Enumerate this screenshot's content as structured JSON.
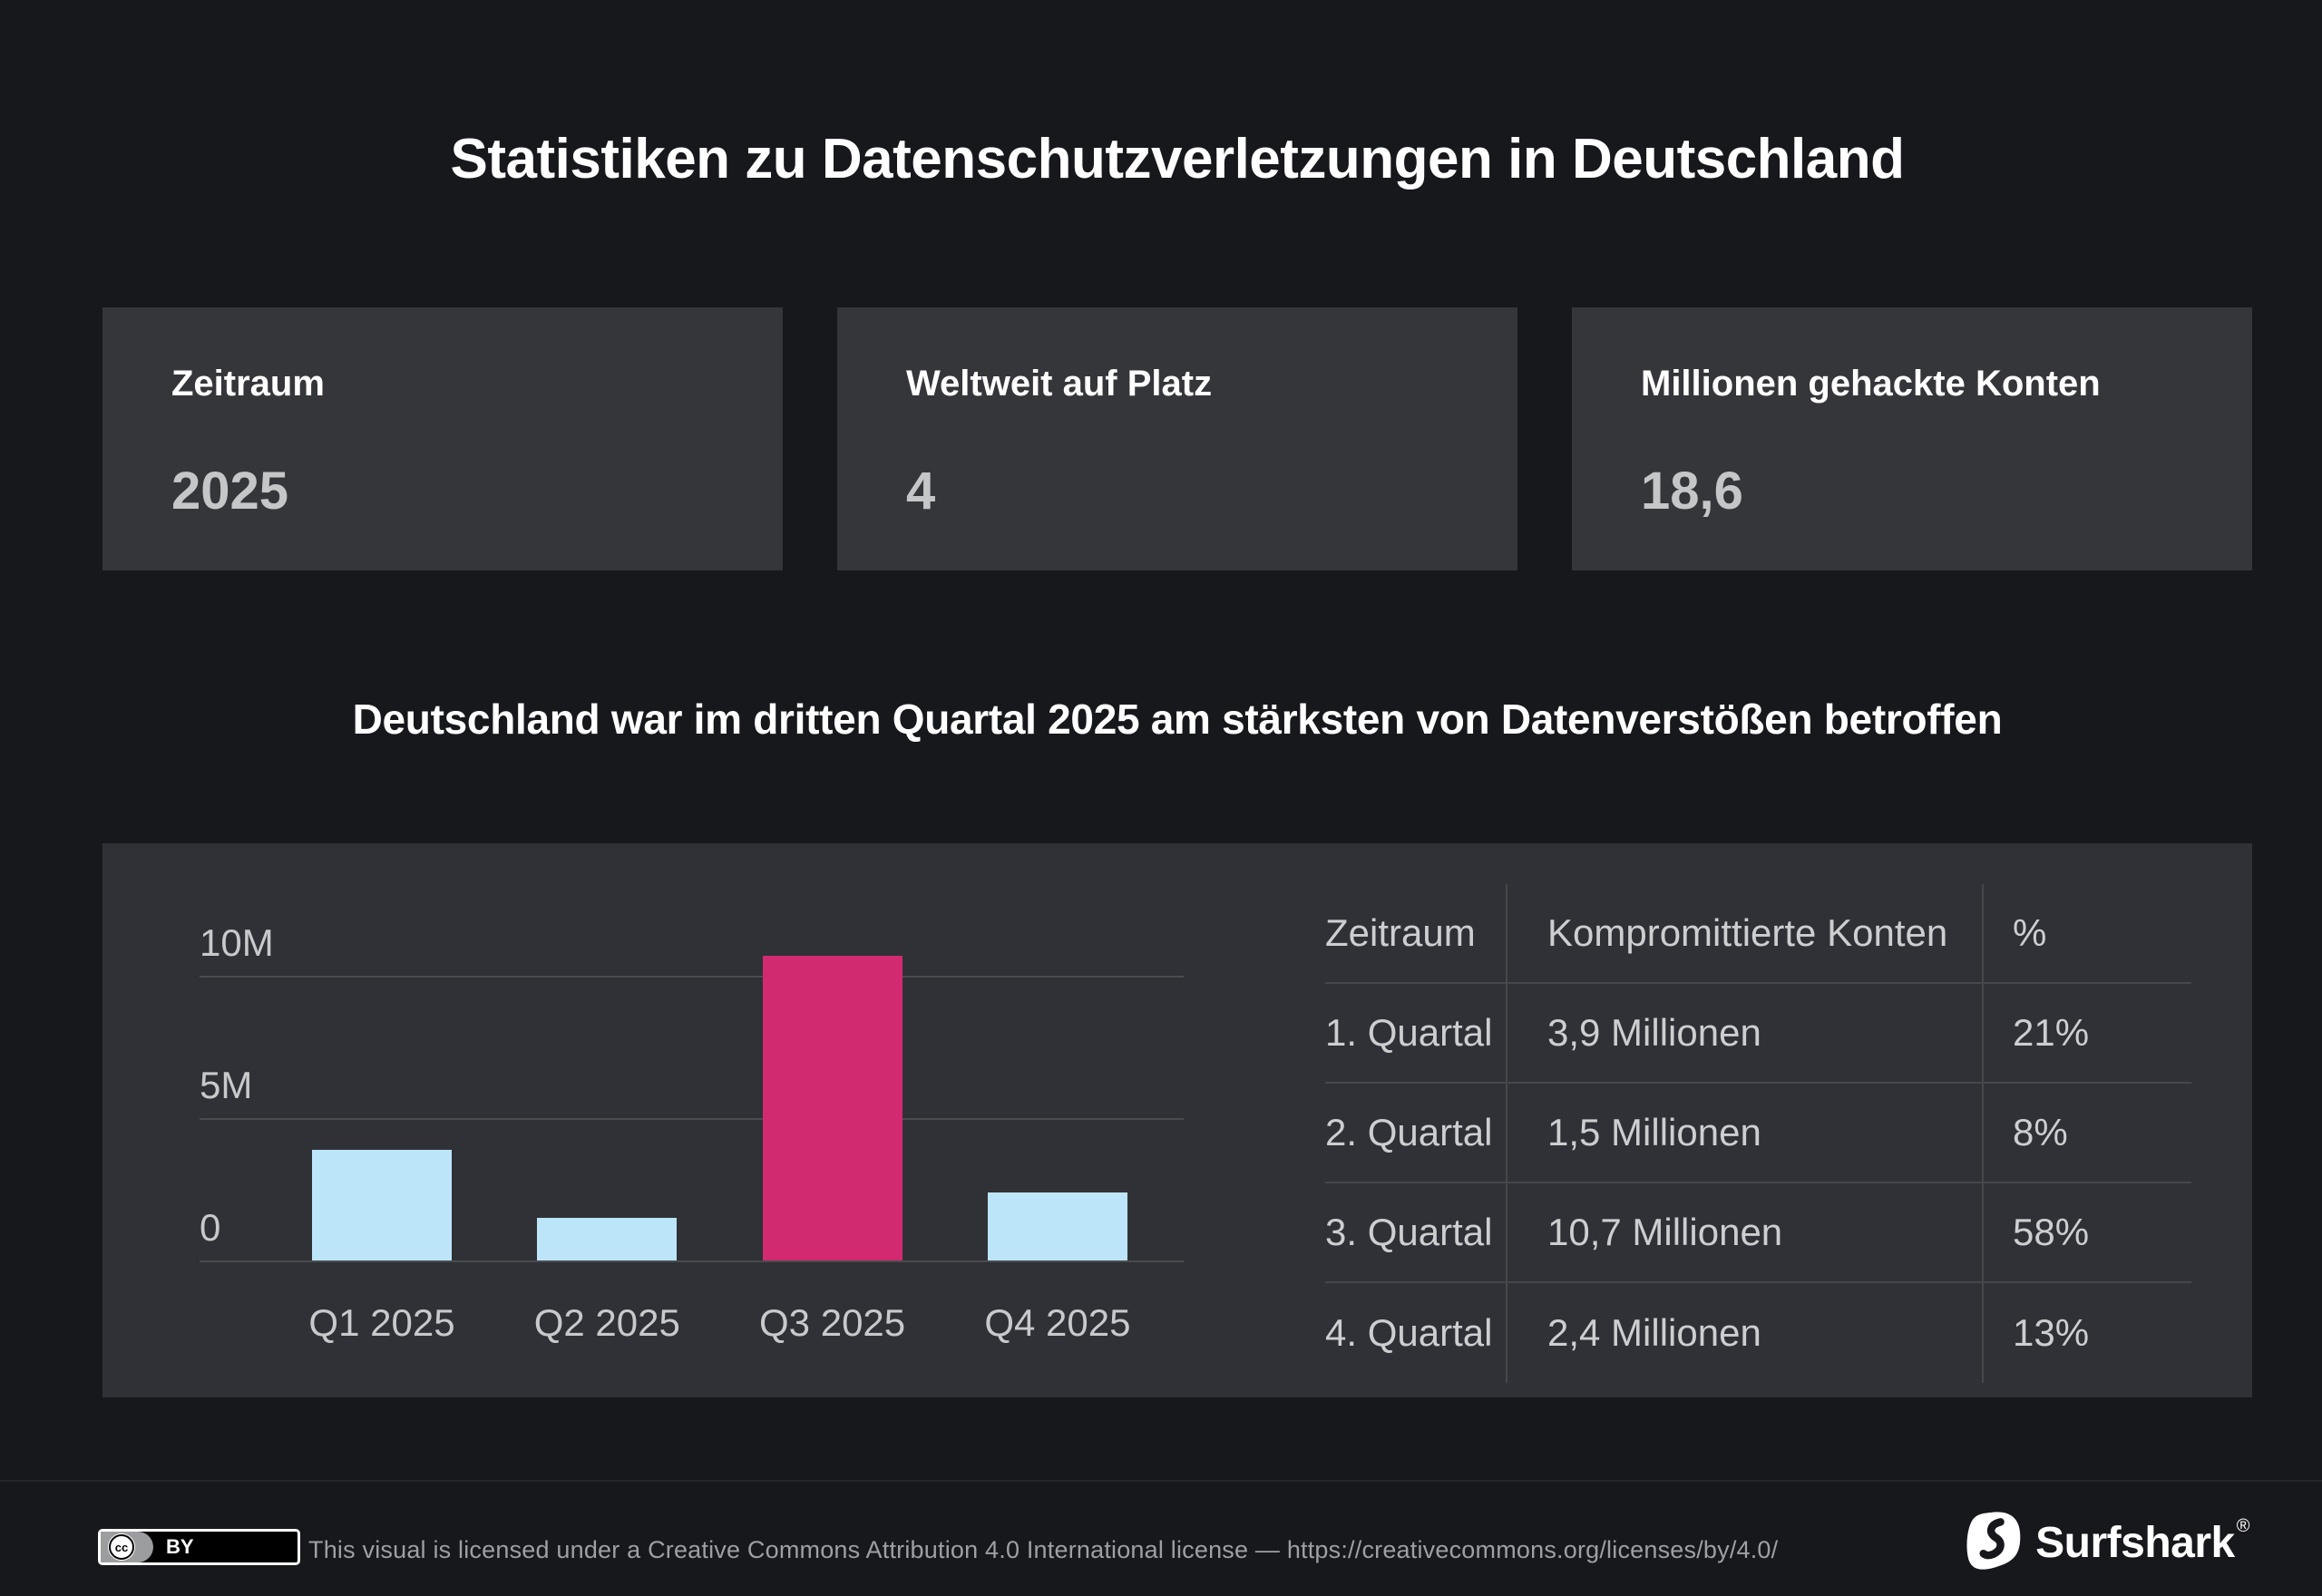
{
  "title": "Statistiken zu Datenschutzverletzungen in Deutschland",
  "subtitle": "Deutschland war im dritten Quartal 2025 am stärksten von Datenverstößen betroffen",
  "stats": [
    {
      "label": "Zeitraum",
      "value": "2025"
    },
    {
      "label": "Weltweit auf Platz",
      "value": "4"
    },
    {
      "label": "Millionen gehackte Konten",
      "value": "18,6"
    }
  ],
  "chart_data": {
    "type": "bar",
    "categories": [
      "Q1 2025",
      "Q2 2025",
      "Q3 2025",
      "Q4 2025"
    ],
    "values": [
      3900000,
      1500000,
      10700000,
      2400000
    ],
    "title": "",
    "xlabel": "",
    "ylabel": "",
    "ylim": [
      0,
      12000000
    ],
    "yticks": [
      {
        "label": "0",
        "value": 0
      },
      {
        "label": "5M",
        "value": 5000000
      },
      {
        "label": "10M",
        "value": 10000000
      }
    ],
    "grid": true,
    "legend": false,
    "highlight_index": 2,
    "colors": {
      "bar_default": "#bce5fa",
      "bar_highlight": "#d22a70"
    }
  },
  "table": {
    "headers": [
      "Zeitraum",
      "Kompromittierte Konten",
      "%"
    ],
    "rows": [
      [
        "1. Quartal",
        "3,9 Millionen",
        "21%"
      ],
      [
        "2. Quartal",
        "1,5 Millionen",
        "8%"
      ],
      [
        "3. Quartal",
        "10,7 Millionen",
        "58%"
      ],
      [
        "4. Quartal",
        "2,4 Millionen",
        "13%"
      ]
    ]
  },
  "footer": {
    "cc_circle": "cc",
    "cc_badge": "BY",
    "license_text": "This visual is licensed under a Creative Commons Attribution 4.0 International license — https://creativecommons.org/licenses/by/4.0/",
    "brand": "Surfshark",
    "reg": "®"
  },
  "colors": {
    "background": "#17181b",
    "card": "#35363a",
    "panel": "#303136",
    "accent_pink": "#d22a70",
    "accent_blue": "#bce5fa"
  }
}
